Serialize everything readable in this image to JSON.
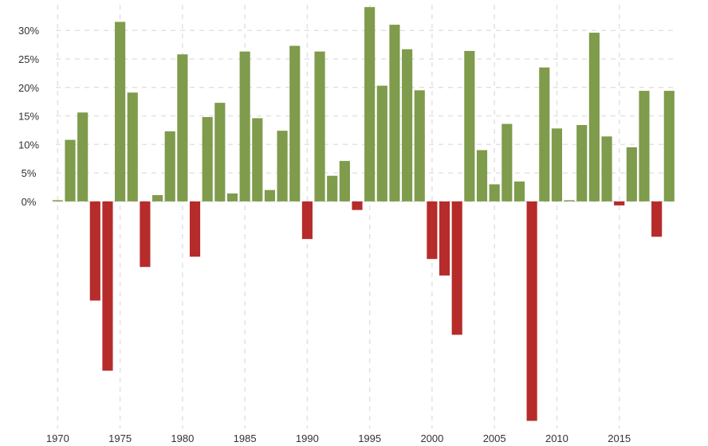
{
  "chart_data": {
    "type": "bar",
    "x": [
      1970,
      1971,
      1972,
      1973,
      1974,
      1975,
      1976,
      1977,
      1978,
      1979,
      1980,
      1981,
      1982,
      1983,
      1984,
      1985,
      1986,
      1987,
      1988,
      1989,
      1990,
      1991,
      1992,
      1993,
      1994,
      1995,
      1996,
      1997,
      1998,
      1999,
      2000,
      2001,
      2002,
      2003,
      2004,
      2005,
      2006,
      2007,
      2008,
      2009,
      2010,
      2011,
      2012,
      2013,
      2014,
      2015,
      2016,
      2017,
      2018,
      2019
    ],
    "values": [
      0.1,
      10.8,
      15.6,
      -17.4,
      -29.7,
      31.5,
      19.1,
      -11.5,
      1.1,
      12.3,
      25.8,
      -9.7,
      14.8,
      17.3,
      1.4,
      26.3,
      14.6,
      2.0,
      12.4,
      27.3,
      -6.6,
      26.3,
      4.5,
      7.1,
      -1.5,
      34.1,
      20.3,
      31.0,
      26.7,
      19.5,
      -10.1,
      -13.0,
      -23.4,
      26.4,
      9.0,
      3.0,
      13.6,
      3.5,
      -38.5,
      23.5,
      12.8,
      0.0,
      13.4,
      29.6,
      11.4,
      -0.7,
      9.5,
      19.4,
      -6.2,
      19.4
    ],
    "xticks": [
      1970,
      1975,
      1980,
      1985,
      1990,
      1995,
      2000,
      2005,
      2010,
      2015
    ],
    "xtick_labels": [
      "1970",
      "1975",
      "1980",
      "1985",
      "1990",
      "1995",
      "2000",
      "2005",
      "2010",
      "2015"
    ],
    "yticks": [
      0,
      5,
      10,
      15,
      20,
      25,
      30
    ],
    "ytick_labels": [
      "0%",
      "5%",
      "10%",
      "15%",
      "20%",
      "25%",
      "30%"
    ],
    "ylim": [
      -39,
      34.5
    ],
    "xlim": [
      1969.85,
      2019.3
    ],
    "grid": true,
    "colors": {
      "positive": "#7f9b4c",
      "negative": "#b52c2b",
      "grid": "#e2e2e2",
      "axis": "#333333"
    }
  }
}
